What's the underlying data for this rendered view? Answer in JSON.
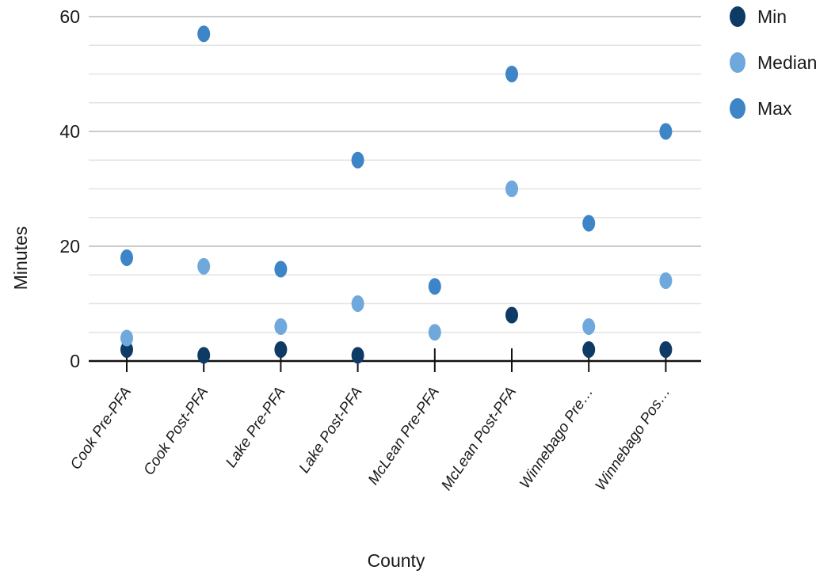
{
  "chart_data": {
    "type": "scatter",
    "xlabel": "County",
    "ylabel": "Minutes",
    "ylim": [
      0,
      60
    ],
    "yticks": [
      0,
      20,
      40,
      60
    ],
    "minor_step": 5,
    "grid": true,
    "legend_position": "top-right",
    "categories": [
      "Cook Pre-PFA",
      "Cook Post-PFA",
      "Lake Pre-PFA",
      "Lake Post-PFA",
      "McLean Pre-PFA",
      "McLean Post-PFA",
      "Winnebago Pre…",
      "Winnebago Pos…"
    ],
    "series": [
      {
        "name": "Min",
        "color": "#0e3a66",
        "values": [
          2,
          1,
          2,
          1,
          null,
          8,
          2,
          2
        ]
      },
      {
        "name": "Median",
        "color": "#6fa8dc",
        "values": [
          4,
          16.5,
          6,
          10,
          5,
          30,
          6,
          14
        ]
      },
      {
        "name": "Max",
        "color": "#3d85c6",
        "values": [
          18,
          57,
          16,
          35,
          13,
          50,
          24,
          40
        ]
      }
    ]
  }
}
